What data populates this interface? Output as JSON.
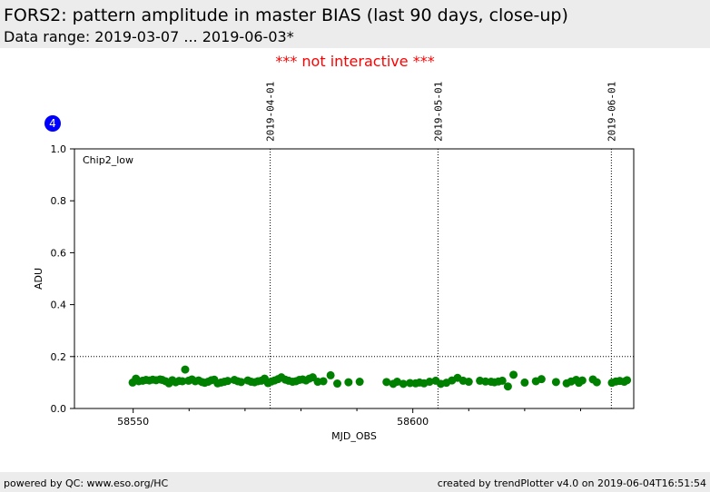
{
  "header": {
    "title": "FORS2: pattern amplitude in master BIAS (last 90 days, close-up)",
    "subtitle": "Data range: 2019-03-07 ... 2019-06-03*"
  },
  "notice": "*** not interactive ***",
  "badge": "4",
  "footer": {
    "left": "powered by QC: www.eso.org/HC",
    "right": "created by trendPlotter v4.0 on 2019-06-04T16:51:54"
  },
  "colors": {
    "points": "#008000",
    "notice": "#ff0000",
    "badge": "#0000ff"
  },
  "chart_data": {
    "type": "scatter",
    "panel_label": "Chip2_low",
    "xlabel": "MJD_OBS",
    "ylabel": "ADU",
    "xlim": [
      58539.5,
      58639.5
    ],
    "ylim": [
      0,
      1
    ],
    "xticks": [
      58550,
      58600
    ],
    "xtick_labels": [
      "58550",
      "58600"
    ],
    "xminor_ticks": [
      58560,
      58570,
      58580,
      58590,
      58610,
      58620,
      58630
    ],
    "yticks": [
      0.0,
      0.2,
      0.4,
      0.6,
      0.8,
      1.0
    ],
    "ytick_labels": [
      "0.0",
      "0.2",
      "0.4",
      "0.6",
      "0.8",
      "1.0"
    ],
    "hline": 0.2,
    "date_markers": [
      {
        "x": 58574.5,
        "label": "2019-04-01"
      },
      {
        "x": 58604.5,
        "label": "2019-05-01"
      },
      {
        "x": 58635.5,
        "label": "2019-06-01"
      }
    ],
    "series": [
      {
        "x": [
          58549.9,
          58550.5,
          58551.0,
          58551.7,
          58552.3,
          58552.9,
          58553.5,
          58554.1,
          58554.8,
          58555.2,
          58555.8,
          58556.4,
          58557.0,
          58557.6,
          58558.2,
          58558.8,
          58559.3,
          58559.9,
          58560.5,
          58561.1,
          58561.7,
          58562.3,
          58562.8,
          58563.4,
          58564.0,
          58564.5,
          58565.1,
          58565.7,
          58566.3,
          58566.9,
          58568.1,
          58568.7,
          58569.3,
          58570.5,
          58571.1,
          58571.7,
          58572.3,
          58572.9,
          58573.5,
          58574.1,
          58574.7,
          58575.3,
          58575.9,
          58576.5,
          58577.2,
          58577.8,
          58578.5,
          58579.1,
          58579.7,
          58580.3,
          58580.9,
          58581.5,
          58582.1,
          58583.0,
          58584.0,
          58585.3,
          58586.5,
          58588.5,
          58590.5,
          58595.3,
          58596.5,
          58597.2,
          58598.3,
          58599.5,
          58600.5,
          58601.2,
          58602.0,
          58603.0,
          58604.1,
          58605.0,
          58606.0,
          58607.0,
          58608.0,
          58609.0,
          58610.0,
          58612.0,
          58613.0,
          58614.0,
          58614.6,
          58615.3,
          58616.0,
          58617.0,
          58618.0,
          58620.0,
          58622.0,
          58623.0,
          58625.6,
          58627.5,
          58628.3,
          58629.2,
          58629.7,
          58630.3,
          58632.2,
          58632.9,
          58635.6,
          58636.3,
          58637.0,
          58637.8,
          58638.3
        ],
        "y": [
          0.1,
          0.115,
          0.105,
          0.107,
          0.11,
          0.108,
          0.111,
          0.109,
          0.112,
          0.11,
          0.105,
          0.097,
          0.109,
          0.101,
          0.106,
          0.105,
          0.15,
          0.107,
          0.112,
          0.105,
          0.108,
          0.102,
          0.099,
          0.103,
          0.109,
          0.111,
          0.097,
          0.1,
          0.103,
          0.106,
          0.11,
          0.105,
          0.102,
          0.108,
          0.103,
          0.101,
          0.105,
          0.107,
          0.115,
          0.098,
          0.104,
          0.108,
          0.113,
          0.12,
          0.111,
          0.107,
          0.103,
          0.105,
          0.11,
          0.112,
          0.108,
          0.115,
          0.12,
          0.103,
          0.105,
          0.128,
          0.096,
          0.101,
          0.103,
          0.102,
          0.095,
          0.103,
          0.095,
          0.098,
          0.097,
          0.1,
          0.097,
          0.103,
          0.107,
          0.095,
          0.099,
          0.108,
          0.118,
          0.107,
          0.103,
          0.107,
          0.104,
          0.103,
          0.101,
          0.104,
          0.107,
          0.085,
          0.13,
          0.1,
          0.105,
          0.113,
          0.102,
          0.097,
          0.104,
          0.11,
          0.099,
          0.108,
          0.112,
          0.101,
          0.099,
          0.104,
          0.106,
          0.103,
          0.109
        ]
      }
    ]
  }
}
